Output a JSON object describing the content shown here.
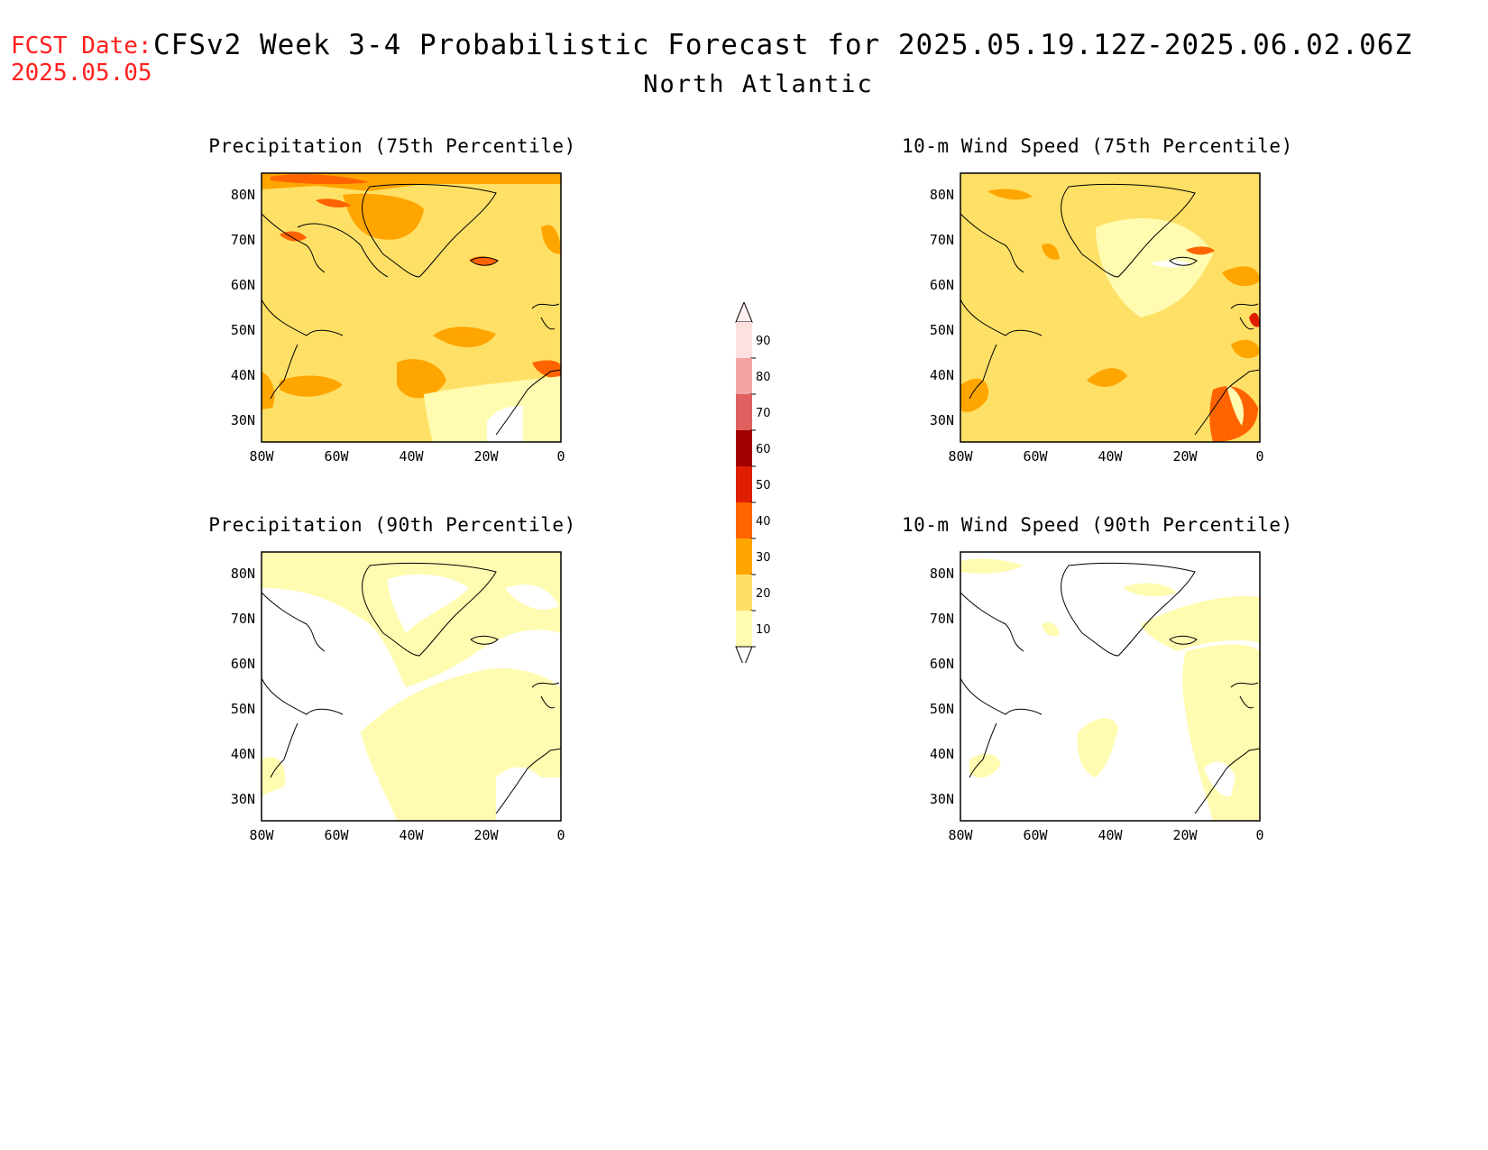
{
  "header": {
    "fcst_label": "FCST Date:",
    "fcst_date": "2025.05.05",
    "title": "CFSv2 Week 3-4 Probabilistic Forecast for 2025.05.19.12Z-2025.06.02.06Z",
    "region": "North Atlantic"
  },
  "panels": [
    {
      "title": "Precipitation (75th Percentile)"
    },
    {
      "title": "10-m Wind Speed (75th Percentile)"
    },
    {
      "title": "Precipitation (90th Percentile)"
    },
    {
      "title": "10-m Wind Speed (90th Percentile)"
    }
  ],
  "axes": {
    "y_ticks": [
      "80N",
      "70N",
      "60N",
      "50N",
      "40N",
      "30N"
    ],
    "x_ticks": [
      "80W",
      "60W",
      "40W",
      "20W",
      "0"
    ]
  },
  "colorbar": {
    "labels": [
      "90",
      "80",
      "70",
      "60",
      "50",
      "40",
      "30",
      "20",
      "10"
    ],
    "colors": [
      "#fde0e0",
      "#f4a3a3",
      "#e06060",
      "#a00000",
      "#e01e00",
      "#ff6400",
      "#ffa500",
      "#ffe066",
      "#fffbb0"
    ]
  },
  "fill_colors": {
    "lvl1": "#fffbb0",
    "lvl2": "#ffe066",
    "lvl3": "#ffa500",
    "lvl4": "#ff6400"
  }
}
